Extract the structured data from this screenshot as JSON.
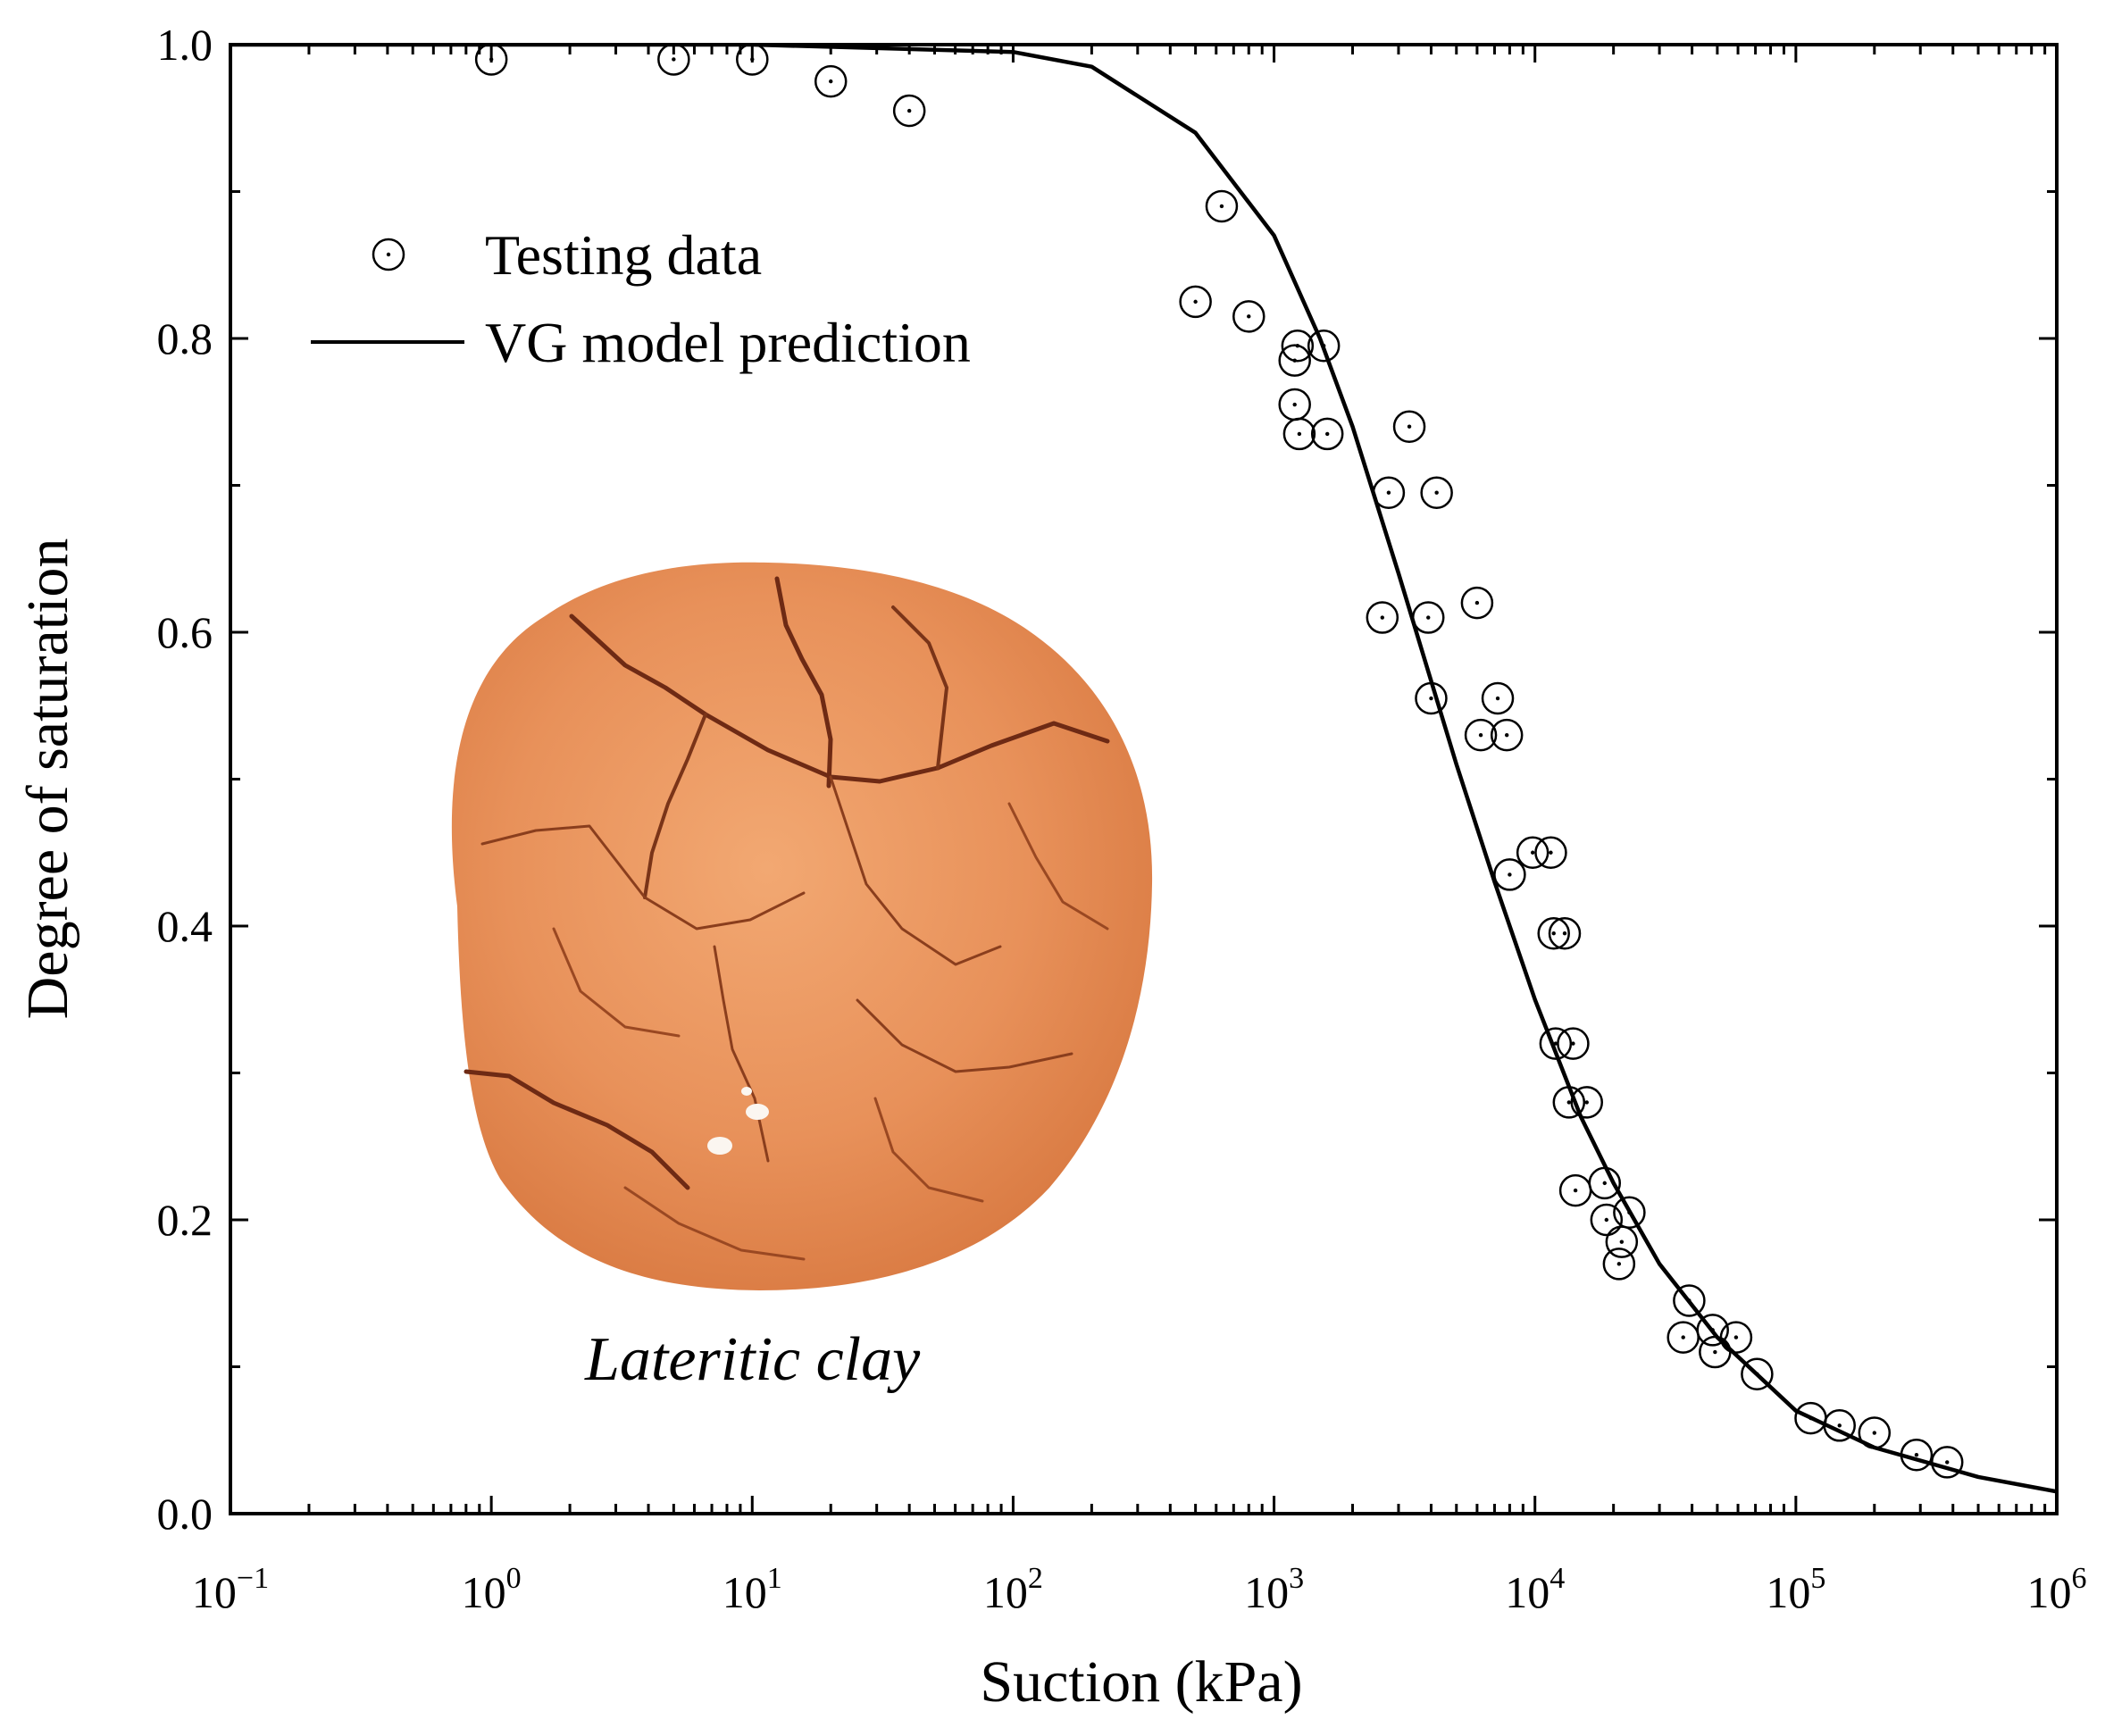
{
  "chart_data": {
    "type": "scatter",
    "xlabel": "Suction (kPa)",
    "ylabel": "Degree of saturation",
    "xscale": "log",
    "xlim": [
      0.1,
      1000000
    ],
    "ylim": [
      0.0,
      1.0
    ],
    "x_ticks": [
      {
        "value": 0.1,
        "base": "10",
        "exp": "−1"
      },
      {
        "value": 1,
        "base": "10",
        "exp": "0"
      },
      {
        "value": 10,
        "base": "10",
        "exp": "1"
      },
      {
        "value": 100,
        "base": "10",
        "exp": "2"
      },
      {
        "value": 1000,
        "base": "10",
        "exp": "3"
      },
      {
        "value": 10000,
        "base": "10",
        "exp": "4"
      },
      {
        "value": 100000,
        "base": "10",
        "exp": "5"
      },
      {
        "value": 1000000,
        "base": "10",
        "exp": "6"
      }
    ],
    "y_ticks": [
      "0.0",
      "0.2",
      "0.4",
      "0.6",
      "0.8",
      "1.0"
    ],
    "grid": false,
    "legend_position": "top-left",
    "series": [
      {
        "name": "Testing data",
        "marker": "circle-dot",
        "x": [
          1,
          5,
          10,
          20,
          40,
          500,
          630,
          800,
          1200,
          1230,
          1200,
          1250,
          1550,
          1600,
          2600,
          2750,
          3300,
          3900,
          4200,
          4000,
          6000,
          6200,
          7200,
          7800,
          8000,
          9800,
          11500,
          11800,
          13000,
          12000,
          14000,
          13500,
          15800,
          14300,
          18500,
          18800,
          21000,
          23000,
          21500,
          37000,
          39000,
          48000,
          49000,
          59000,
          71000,
          114000,
          147000,
          200000,
          290000,
          380000
        ],
        "y": [
          0.99,
          0.99,
          0.99,
          0.975,
          0.955,
          0.825,
          0.89,
          0.815,
          0.785,
          0.795,
          0.755,
          0.735,
          0.795,
          0.735,
          0.61,
          0.695,
          0.74,
          0.61,
          0.695,
          0.555,
          0.62,
          0.53,
          0.555,
          0.53,
          0.435,
          0.45,
          0.45,
          0.395,
          0.395,
          0.32,
          0.32,
          0.28,
          0.28,
          0.22,
          0.225,
          0.2,
          0.17,
          0.205,
          0.185,
          0.12,
          0.145,
          0.125,
          0.11,
          0.12,
          0.095,
          0.065,
          0.06,
          0.055,
          0.04,
          0.035
        ]
      },
      {
        "name": "VG model prediction",
        "type": "line",
        "model": "van Genuchten",
        "x": [
          0.1,
          10,
          100,
          200,
          500,
          1000,
          1500,
          2000,
          3000,
          5000,
          7000,
          10000,
          15000,
          20000,
          30000,
          50000,
          100000,
          200000,
          500000,
          1000000
        ],
        "y": [
          1.0,
          1.0,
          0.995,
          0.985,
          0.94,
          0.87,
          0.8,
          0.74,
          0.64,
          0.51,
          0.43,
          0.35,
          0.27,
          0.225,
          0.17,
          0.12,
          0.07,
          0.045,
          0.025,
          0.015
        ]
      }
    ],
    "annotations": [
      "Lateritic clay"
    ]
  },
  "inset": {
    "caption": "Lateritic clay",
    "colors": {
      "base": "#e8915a",
      "light": "#f2b07c",
      "dark": "#c8602e",
      "crack": "#6e2a14"
    }
  }
}
